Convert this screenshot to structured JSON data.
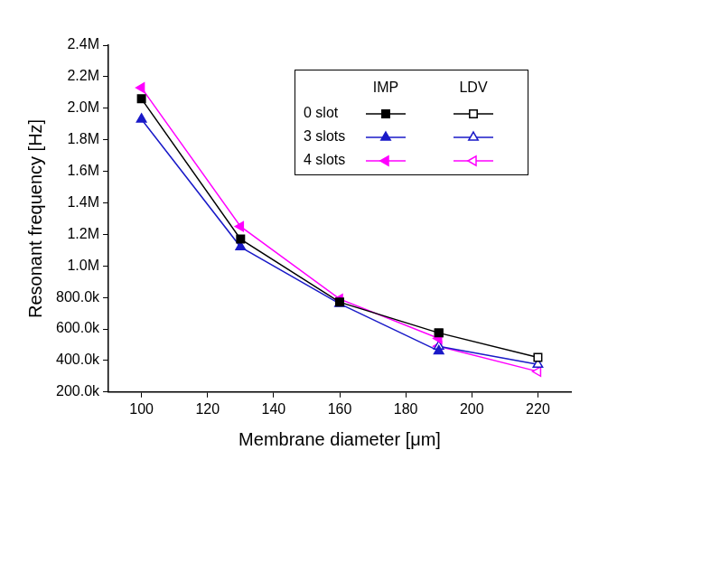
{
  "chart_data": {
    "type": "line",
    "x_label": "Membrane diameter [μm]",
    "y_label": "Resonant frequency [Hz]",
    "x": [
      100,
      130,
      160,
      190,
      220
    ],
    "series": [
      {
        "name": "0 slot",
        "method": "IMP",
        "color": "#000000",
        "marker": "square",
        "values": [
          2060000,
          1170000,
          770000,
          575000,
          null
        ]
      },
      {
        "name": "3 slots",
        "method": "IMP",
        "color": "#1a1ac8",
        "marker": "triangle",
        "values": [
          1930000,
          1120000,
          760000,
          460000,
          null
        ]
      },
      {
        "name": "4 slots",
        "method": "IMP",
        "color": "#ff00ff",
        "marker": "left_triangle",
        "values": [
          2130000,
          1250000,
          790000,
          540000,
          null
        ]
      },
      {
        "name": "0 slot",
        "method": "LDV",
        "color": "#000000",
        "marker": "open_square",
        "values": [
          null,
          null,
          null,
          575000,
          420000
        ]
      },
      {
        "name": "3 slots",
        "method": "LDV",
        "color": "#1a1ac8",
        "marker": "open_triangle",
        "values": [
          null,
          null,
          null,
          490000,
          375000
        ]
      },
      {
        "name": "4 slots",
        "method": "LDV",
        "color": "#ff00ff",
        "marker": "open_left_triangle",
        "values": [
          null,
          null,
          null,
          490000,
          330000
        ]
      }
    ],
    "xlim": [
      90,
      230
    ],
    "xticks": [
      100,
      120,
      140,
      160,
      180,
      200,
      220
    ],
    "ylim": [
      200000,
      2400000
    ],
    "yticks": [
      {
        "value": 200000,
        "label": "200.0k"
      },
      {
        "value": 400000,
        "label": "400.0k"
      },
      {
        "value": 600000,
        "label": "600.0k"
      },
      {
        "value": 800000,
        "label": "800.0k"
      },
      {
        "value": 1000000,
        "label": "1.0M"
      },
      {
        "value": 1200000,
        "label": "1.2M"
      },
      {
        "value": 1400000,
        "label": "1.4M"
      },
      {
        "value": 1600000,
        "label": "1.6M"
      },
      {
        "value": 1800000,
        "label": "1.8M"
      },
      {
        "value": 2000000,
        "label": "2.0M"
      },
      {
        "value": 2200000,
        "label": "2.2M"
      },
      {
        "value": 2400000,
        "label": "2.4M"
      }
    ],
    "grid": false,
    "legend": "upper right"
  }
}
